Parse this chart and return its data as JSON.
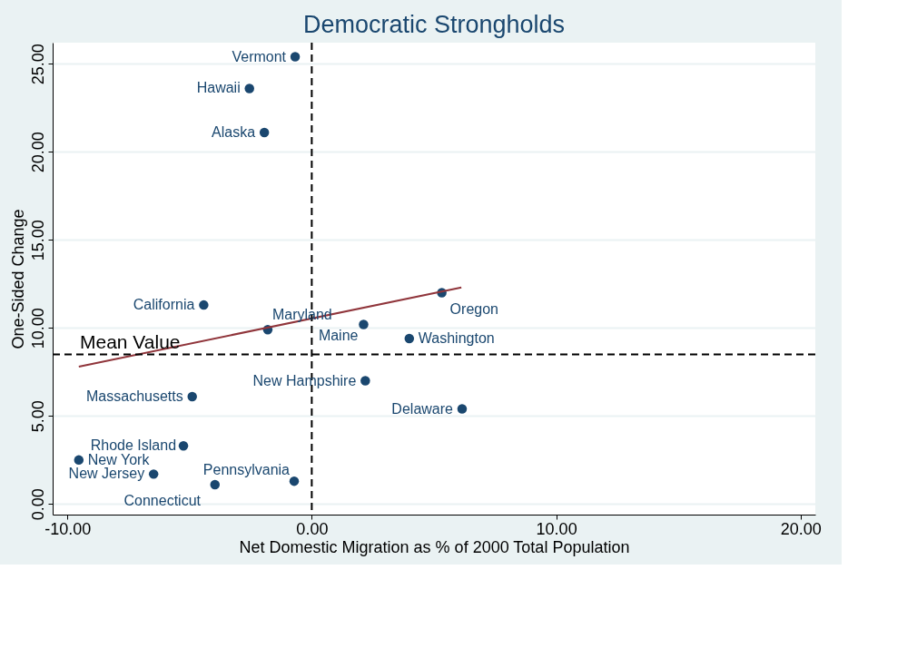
{
  "chart_data": {
    "type": "scatter",
    "title": "Democratic Strongholds",
    "xlabel": "Net Domestic Migration as % of 2000 Total Population",
    "ylabel": "One-Sided Change",
    "series": [
      {
        "type": "scatter",
        "marker": "circle",
        "color": "#1a476f",
        "x": [
          -0.68,
          -2.55,
          -1.94,
          -4.42,
          -1.8,
          2.12,
          5.32,
          3.99,
          2.19,
          6.15,
          -4.89,
          -5.25,
          -9.53,
          -6.47,
          -3.96,
          -0.72
        ],
        "values": [
          25.4,
          23.6,
          21.1,
          11.3,
          9.9,
          10.2,
          12.0,
          9.4,
          7.0,
          5.4,
          6.1,
          3.3,
          2.5,
          1.7,
          1.1,
          1.3
        ]
      },
      {
        "type": "line",
        "line_style": "solid",
        "color": "#90353b",
        "x": [
          -9.53,
          6.12
        ],
        "values": [
          7.8,
          12.3
        ]
      }
    ],
    "annotations": [
      {
        "text": "Vermont",
        "x": -0.68,
        "y": 25.4
      },
      {
        "text": "Hawaii",
        "x": -2.55,
        "y": 23.6
      },
      {
        "text": "Alaska",
        "x": -1.94,
        "y": 21.1
      },
      {
        "text": "California",
        "x": -4.42,
        "y": 11.3
      },
      {
        "text": "Maryland",
        "x": -1.8,
        "y": 9.9
      },
      {
        "text": "Maine",
        "x": 2.12,
        "y": 10.2
      },
      {
        "text": "Oregon",
        "x": 5.32,
        "y": 12.0
      },
      {
        "text": "Washington",
        "x": 3.99,
        "y": 9.4
      },
      {
        "text": "New Hampshire",
        "x": 2.19,
        "y": 7.0
      },
      {
        "text": "Delaware",
        "x": 6.15,
        "y": 5.4
      },
      {
        "text": "Massachusetts",
        "x": -4.89,
        "y": 6.1
      },
      {
        "text": "Rhode Island",
        "x": -5.25,
        "y": 3.3
      },
      {
        "text": "New York",
        "x": -9.53,
        "y": 2.5
      },
      {
        "text": "New Jersey",
        "x": -6.47,
        "y": 1.7
      },
      {
        "text": "Connecticut",
        "x": -3.96,
        "y": 1.1
      },
      {
        "text": "Pennsylvania",
        "x": -0.72,
        "y": 1.3
      }
    ],
    "ref_lines": [
      {
        "axis": "y",
        "value": 8.5,
        "label": "Mean Value",
        "color": "#000000",
        "line_style": "dashed"
      },
      {
        "axis": "x",
        "value": 0,
        "color": "#000000",
        "line_style": "dashed"
      }
    ],
    "xlim": [
      -10.6,
      20.6
    ],
    "ylim": [
      -0.6,
      26.2
    ],
    "xticks": [
      {
        "value": -10,
        "label": "-10.00"
      },
      {
        "value": 0,
        "label": "0.00"
      },
      {
        "value": 10,
        "label": "10.00"
      },
      {
        "value": 20,
        "label": "20.00"
      }
    ],
    "yticks": [
      {
        "value": 0,
        "label": "0.00"
      },
      {
        "value": 5,
        "label": "5.00"
      },
      {
        "value": 10,
        "label": "10.00"
      },
      {
        "value": 15,
        "label": "15.00"
      },
      {
        "value": 20,
        "label": "20.00"
      },
      {
        "value": 25,
        "label": "25.00"
      }
    ],
    "grid": "y"
  }
}
